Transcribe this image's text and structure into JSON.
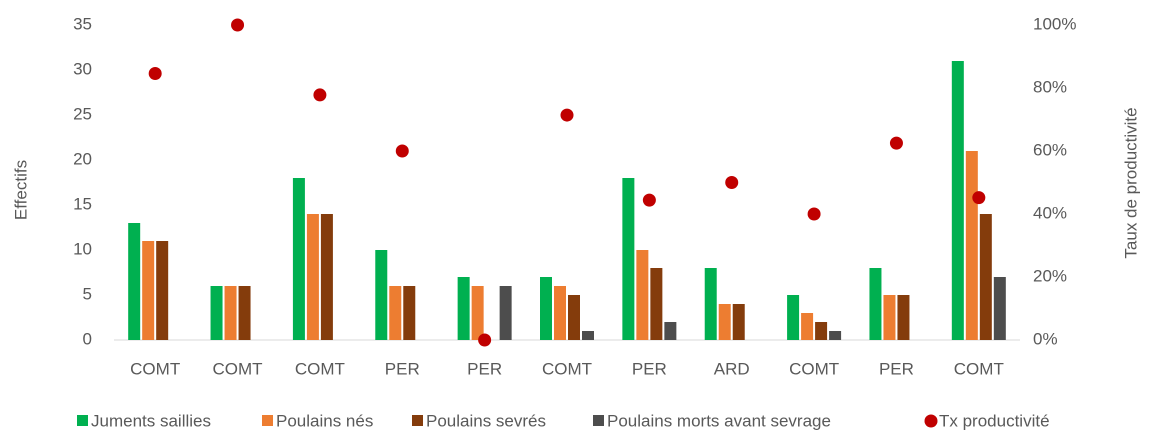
{
  "chart_data": {
    "type": "bar",
    "ylabel": "Effectifs",
    "y2label": "Taux de productivité",
    "categories": [
      "COMT",
      "COMT",
      "COMT",
      "PER",
      "PER",
      "COMT",
      "PER",
      "ARD",
      "COMT",
      "PER",
      "COMT"
    ],
    "series": [
      {
        "name": "Juments saillies",
        "color": "#00b050",
        "values": [
          13,
          6,
          18,
          10,
          7,
          7,
          18,
          8,
          5,
          8,
          31
        ]
      },
      {
        "name": "Poulains nés",
        "color": "#ed7d31",
        "values": [
          11,
          6,
          14,
          6,
          6,
          6,
          10,
          4,
          3,
          5,
          21
        ]
      },
      {
        "name": "Poulains sevrés",
        "color": "#843c0c",
        "values": [
          11,
          6,
          14,
          6,
          0,
          5,
          8,
          4,
          2,
          5,
          14
        ]
      },
      {
        "name": "Poulains morts avant sevrage",
        "color": "#4d4d4d",
        "values": [
          0,
          0,
          0,
          0,
          6,
          1,
          2,
          0,
          1,
          0,
          7
        ]
      },
      {
        "name": "Tx productivité",
        "color": "#c00000",
        "type": "scatter",
        "axis": "y2",
        "values": [
          84.6,
          100,
          77.8,
          60,
          0,
          71.4,
          44.4,
          50,
          40,
          62.5,
          45.2
        ]
      }
    ],
    "ylim": [
      0,
      35
    ],
    "yticks": [
      0,
      5,
      10,
      15,
      20,
      25,
      30,
      35
    ],
    "y2lim": [
      0,
      100
    ],
    "y2ticks": [
      {
        "value": 0,
        "label": "0%"
      },
      {
        "value": 20,
        "label": "20%"
      },
      {
        "value": 40,
        "label": "40%"
      },
      {
        "value": 60,
        "label": "60%"
      },
      {
        "value": 80,
        "label": "80%"
      },
      {
        "value": 100,
        "label": "100%"
      }
    ],
    "legend": "bottom",
    "grid": false
  }
}
